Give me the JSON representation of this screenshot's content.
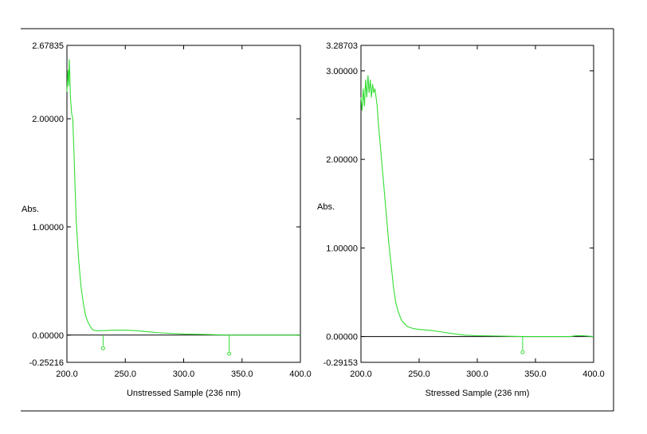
{
  "chart_data": [
    {
      "type": "line",
      "xlabel": "Unstressed Sample (236 nm)",
      "ylabel": "Abs.",
      "xlim": [
        200.0,
        400.0
      ],
      "ylim": [
        -0.25216,
        2.67835
      ],
      "x_ticks": [
        "200.0",
        "250.0",
        "300.0",
        "350.0",
        "400.0"
      ],
      "y_ticks": [
        {
          "value": 2.67835,
          "label": "2.67835"
        },
        {
          "value": 2.0,
          "label": "2.00000"
        },
        {
          "value": 1.0,
          "label": "1.00000"
        },
        {
          "value": 0.0,
          "label": "0.00000"
        },
        {
          "value": -0.25216,
          "label": "-0.25216"
        }
      ],
      "color": "#33dd33",
      "series": [
        {
          "x": [
            200.0,
            200.5,
            201.0,
            201.5,
            202.0,
            202.5,
            203.0,
            204.0,
            205.0,
            206.0,
            207.0,
            208.0,
            210.0,
            212.0,
            214.0,
            216.0,
            218.0,
            220.0,
            222.0,
            225.0,
            230.0,
            240.0,
            250.0,
            260.0,
            270.0,
            280.0,
            300.0,
            320.0,
            340.0,
            360.0,
            380.0,
            400.0
          ],
          "y": [
            2.25,
            2.35,
            2.45,
            2.3,
            2.55,
            2.4,
            2.2,
            2.05,
            2.0,
            1.7,
            1.35,
            1.05,
            0.7,
            0.45,
            0.3,
            0.18,
            0.12,
            0.08,
            0.05,
            0.04,
            0.04,
            0.045,
            0.045,
            0.04,
            0.03,
            0.02,
            0.01,
            0.005,
            0.0,
            0.0,
            0.0,
            0.0
          ]
        }
      ],
      "spikes": [
        {
          "x": 231.0,
          "y": -0.1
        },
        {
          "x": 339.0,
          "y": -0.15
        }
      ]
    },
    {
      "type": "line",
      "xlabel": "Stressed Sample (236 nm)",
      "ylabel": "Abs.",
      "xlim": [
        200.0,
        400.0
      ],
      "ylim": [
        -0.29153,
        3.28703
      ],
      "x_ticks": [
        "200.0",
        "250.0",
        "300.0",
        "350.0",
        "400.0"
      ],
      "y_ticks": [
        {
          "value": 3.28703,
          "label": "3.28703"
        },
        {
          "value": 3.0,
          "label": "3.00000"
        },
        {
          "value": 2.0,
          "label": "2.00000"
        },
        {
          "value": 1.0,
          "label": "1.00000"
        },
        {
          "value": 0.0,
          "label": "0.00000"
        },
        {
          "value": -0.29153,
          "label": "-0.29153"
        }
      ],
      "color": "#33dd33",
      "series": [
        {
          "x": [
            200.0,
            201.0,
            202.0,
            203.0,
            204.0,
            205.0,
            206.0,
            207.0,
            208.0,
            209.0,
            210.0,
            211.0,
            212.0,
            213.0,
            214.0,
            215.0,
            216.0,
            218.0,
            220.0,
            222.0,
            224.0,
            226.0,
            228.0,
            230.0,
            232.0,
            235.0,
            240.0,
            245.0,
            250.0,
            260.0,
            270.0,
            280.0,
            290.0,
            300.0,
            320.0,
            340.0,
            360.0,
            380.0,
            385.0,
            390.0,
            400.0
          ],
          "y": [
            2.7,
            2.55,
            2.8,
            2.6,
            2.9,
            2.7,
            2.95,
            2.75,
            2.9,
            2.7,
            2.85,
            2.75,
            2.8,
            2.7,
            2.6,
            2.4,
            2.25,
            1.95,
            1.65,
            1.35,
            1.05,
            0.8,
            0.55,
            0.38,
            0.28,
            0.18,
            0.11,
            0.09,
            0.08,
            0.07,
            0.05,
            0.03,
            0.015,
            0.01,
            0.005,
            0.0,
            0.0,
            0.0,
            0.01,
            0.01,
            0.0
          ]
        }
      ],
      "spikes": [
        {
          "x": 339.0,
          "y": -0.15
        }
      ]
    }
  ]
}
